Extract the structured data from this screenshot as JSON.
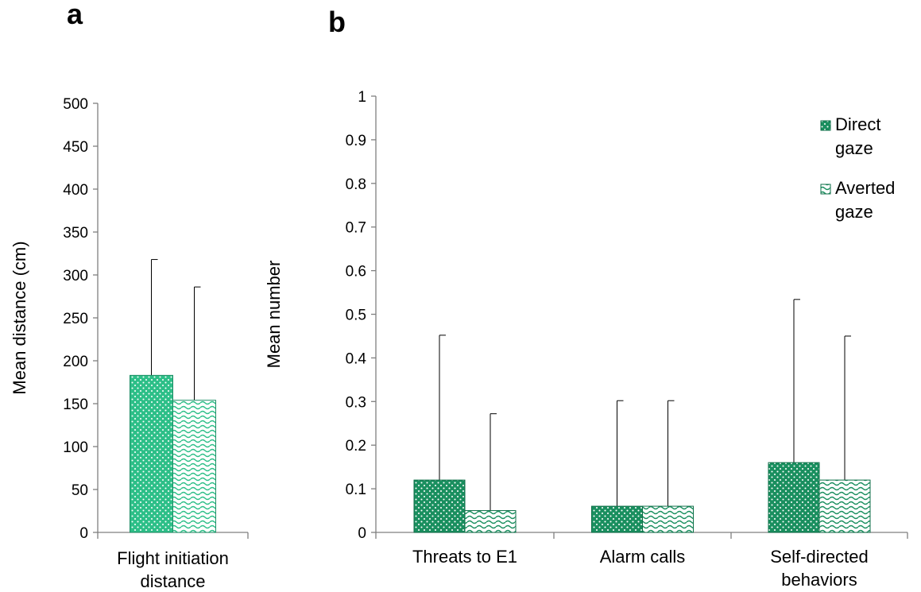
{
  "panels": {
    "a": "a",
    "b": "b"
  },
  "chart_data": [
    {
      "type": "bar",
      "panel": "a",
      "title": "",
      "xlabel": "",
      "ylabel": "Mean distance (cm)",
      "ylim": [
        0,
        500
      ],
      "yticks": [
        "0",
        "50",
        "100",
        "150",
        "200",
        "250",
        "300",
        "350",
        "400",
        "450",
        "500"
      ],
      "categories": [
        "Flight initiation distance"
      ],
      "category_lines": [
        [
          "Flight initiation",
          "distance"
        ]
      ],
      "series": [
        {
          "values": [
            183
          ],
          "error_upper": [
            318
          ],
          "fill": "#2dbf88",
          "pattern": "dots"
        },
        {
          "values": [
            154
          ],
          "error_upper": [
            286
          ],
          "fill": "#2dbf88",
          "pattern": "waves"
        }
      ],
      "legend": "none",
      "grid": false
    },
    {
      "type": "bar",
      "panel": "b",
      "title": "",
      "xlabel": "",
      "ylabel": "Mean number",
      "ylim": [
        0,
        1
      ],
      "yticks": [
        "0",
        "0.1",
        "0.2",
        "0.3",
        "0.4",
        "0.5",
        "0.6",
        "0.7",
        "0.8",
        "0.9",
        "1"
      ],
      "categories": [
        "Threats to E1",
        "Alarm calls",
        "Self-directed behaviors"
      ],
      "category_lines": [
        [
          "Threats to E1"
        ],
        [
          "Alarm calls"
        ],
        [
          "Self-directed",
          "behaviors"
        ]
      ],
      "series": [
        {
          "name": "Direct gaze",
          "name_lines": [
            "Direct",
            "gaze"
          ],
          "values": [
            0.12,
            0.06,
            0.16
          ],
          "error_upper": [
            0.452,
            0.302,
            0.534
          ],
          "fill": "#1a8f5f",
          "pattern": "dots"
        },
        {
          "name": "Averted gaze",
          "name_lines": [
            "Averted",
            "gaze"
          ],
          "values": [
            0.05,
            0.06,
            0.12
          ],
          "error_upper": [
            0.272,
            0.302,
            0.45
          ],
          "fill": "#1a8f5f",
          "pattern": "waves"
        }
      ],
      "legend": "top-right",
      "grid": false
    }
  ]
}
